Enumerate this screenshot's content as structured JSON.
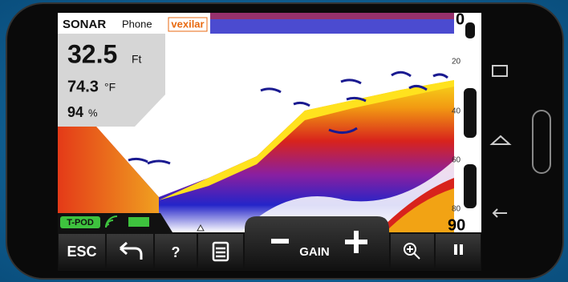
{
  "header": {
    "brand": "SONAR",
    "brand_suffix": "Phone",
    "logo": "vexilar"
  },
  "readings": {
    "depth": "32.5",
    "depth_unit": "Ft",
    "temperature": "74.3",
    "temperature_unit": "°F",
    "battery": "94",
    "battery_unit": "%"
  },
  "depth_scale": {
    "top": "0",
    "ticks": [
      "20",
      "40",
      "60",
      "80"
    ],
    "bottom": "90"
  },
  "status": {
    "device": "T-POD"
  },
  "toolbar": {
    "escape": "ESC",
    "help": "?",
    "gain": "GAIN"
  }
}
